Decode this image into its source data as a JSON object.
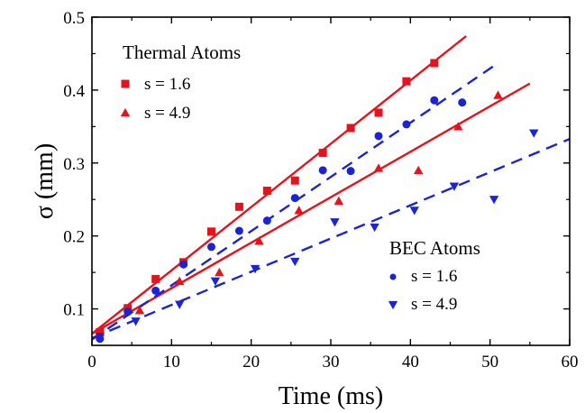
{
  "chart_data": {
    "type": "scatter",
    "xlabel": "Time (ms)",
    "ylabel": "σ (mm)",
    "xlim": [
      0,
      60
    ],
    "ylim": [
      0.05,
      0.5
    ],
    "xticks": [
      "0",
      "10",
      "20",
      "30",
      "40",
      "50",
      "60"
    ],
    "yticks": [
      "0.1",
      "0.2",
      "0.3",
      "0.4",
      "0.5"
    ],
    "grid": false,
    "legends": [
      {
        "title": "Thermal Atoms",
        "placement": "top-left",
        "entries": [
          "s = 1.6",
          "s = 4.9"
        ]
      },
      {
        "title": "BEC Atoms",
        "placement": "bottom-right",
        "entries": [
          "s = 1.6",
          "s = 4.9"
        ]
      }
    ],
    "series": [
      {
        "group": "Thermal Atoms",
        "name": "s = 1.6",
        "marker": "square",
        "color": "#e8121c",
        "x": [
          1,
          4.5,
          8,
          11.5,
          15,
          18.5,
          22,
          25.5,
          29,
          32.5,
          36,
          39.5,
          43
        ],
        "y": [
          0.068,
          0.101,
          0.141,
          0.164,
          0.206,
          0.24,
          0.262,
          0.276,
          0.314,
          0.348,
          0.369,
          0.412,
          0.437
        ]
      },
      {
        "group": "Thermal Atoms",
        "name": "s = 4.9",
        "marker": "triangle-up",
        "color": "#e8121c",
        "x": [
          1,
          6,
          11,
          16,
          21,
          26,
          31,
          36,
          41,
          46,
          51
        ],
        "y": [
          0.068,
          0.098,
          0.138,
          0.15,
          0.193,
          0.235,
          0.248,
          0.293,
          0.29,
          0.35,
          0.393
        ]
      },
      {
        "group": "BEC Atoms",
        "name": "s = 1.6",
        "marker": "circle",
        "color": "#1a23d6",
        "x": [
          1,
          4.5,
          8,
          11.5,
          15,
          18.5,
          22,
          25.5,
          29,
          32.5,
          36,
          39.5,
          43,
          46.5
        ],
        "y": [
          0.059,
          0.096,
          0.125,
          0.161,
          0.185,
          0.207,
          0.221,
          0.252,
          0.29,
          0.289,
          0.337,
          0.353,
          0.386,
          0.383
        ]
      },
      {
        "group": "BEC Atoms",
        "name": "s = 4.9",
        "marker": "triangle-down",
        "color": "#1a23d6",
        "x": [
          1,
          5.5,
          11,
          15.5,
          20.5,
          25.5,
          30.5,
          35.5,
          40.5,
          45.5,
          50.5,
          55.5
        ],
        "y": [
          0.062,
          0.083,
          0.106,
          0.138,
          0.155,
          0.165,
          0.219,
          0.212,
          0.235,
          0.268,
          0.25,
          0.341
        ]
      }
    ],
    "fits": [
      {
        "series": "Thermal Atoms s = 1.6",
        "style": "solid",
        "color": "#e8121c",
        "x": [
          0,
          47
        ],
        "y": [
          0.066,
          0.474
        ]
      },
      {
        "series": "Thermal Atoms s = 4.9",
        "style": "solid",
        "color": "#e8121c",
        "x": [
          0,
          55
        ],
        "y": [
          0.066,
          0.409
        ]
      },
      {
        "series": "BEC Atoms s = 1.6",
        "style": "dashed",
        "color": "#1a23d6",
        "x": [
          0,
          51
        ],
        "y": [
          0.058,
          0.437
        ]
      },
      {
        "series": "BEC Atoms s = 4.9",
        "style": "dashed",
        "color": "#1a23d6",
        "x": [
          0,
          60
        ],
        "y": [
          0.06,
          0.333
        ]
      }
    ]
  }
}
